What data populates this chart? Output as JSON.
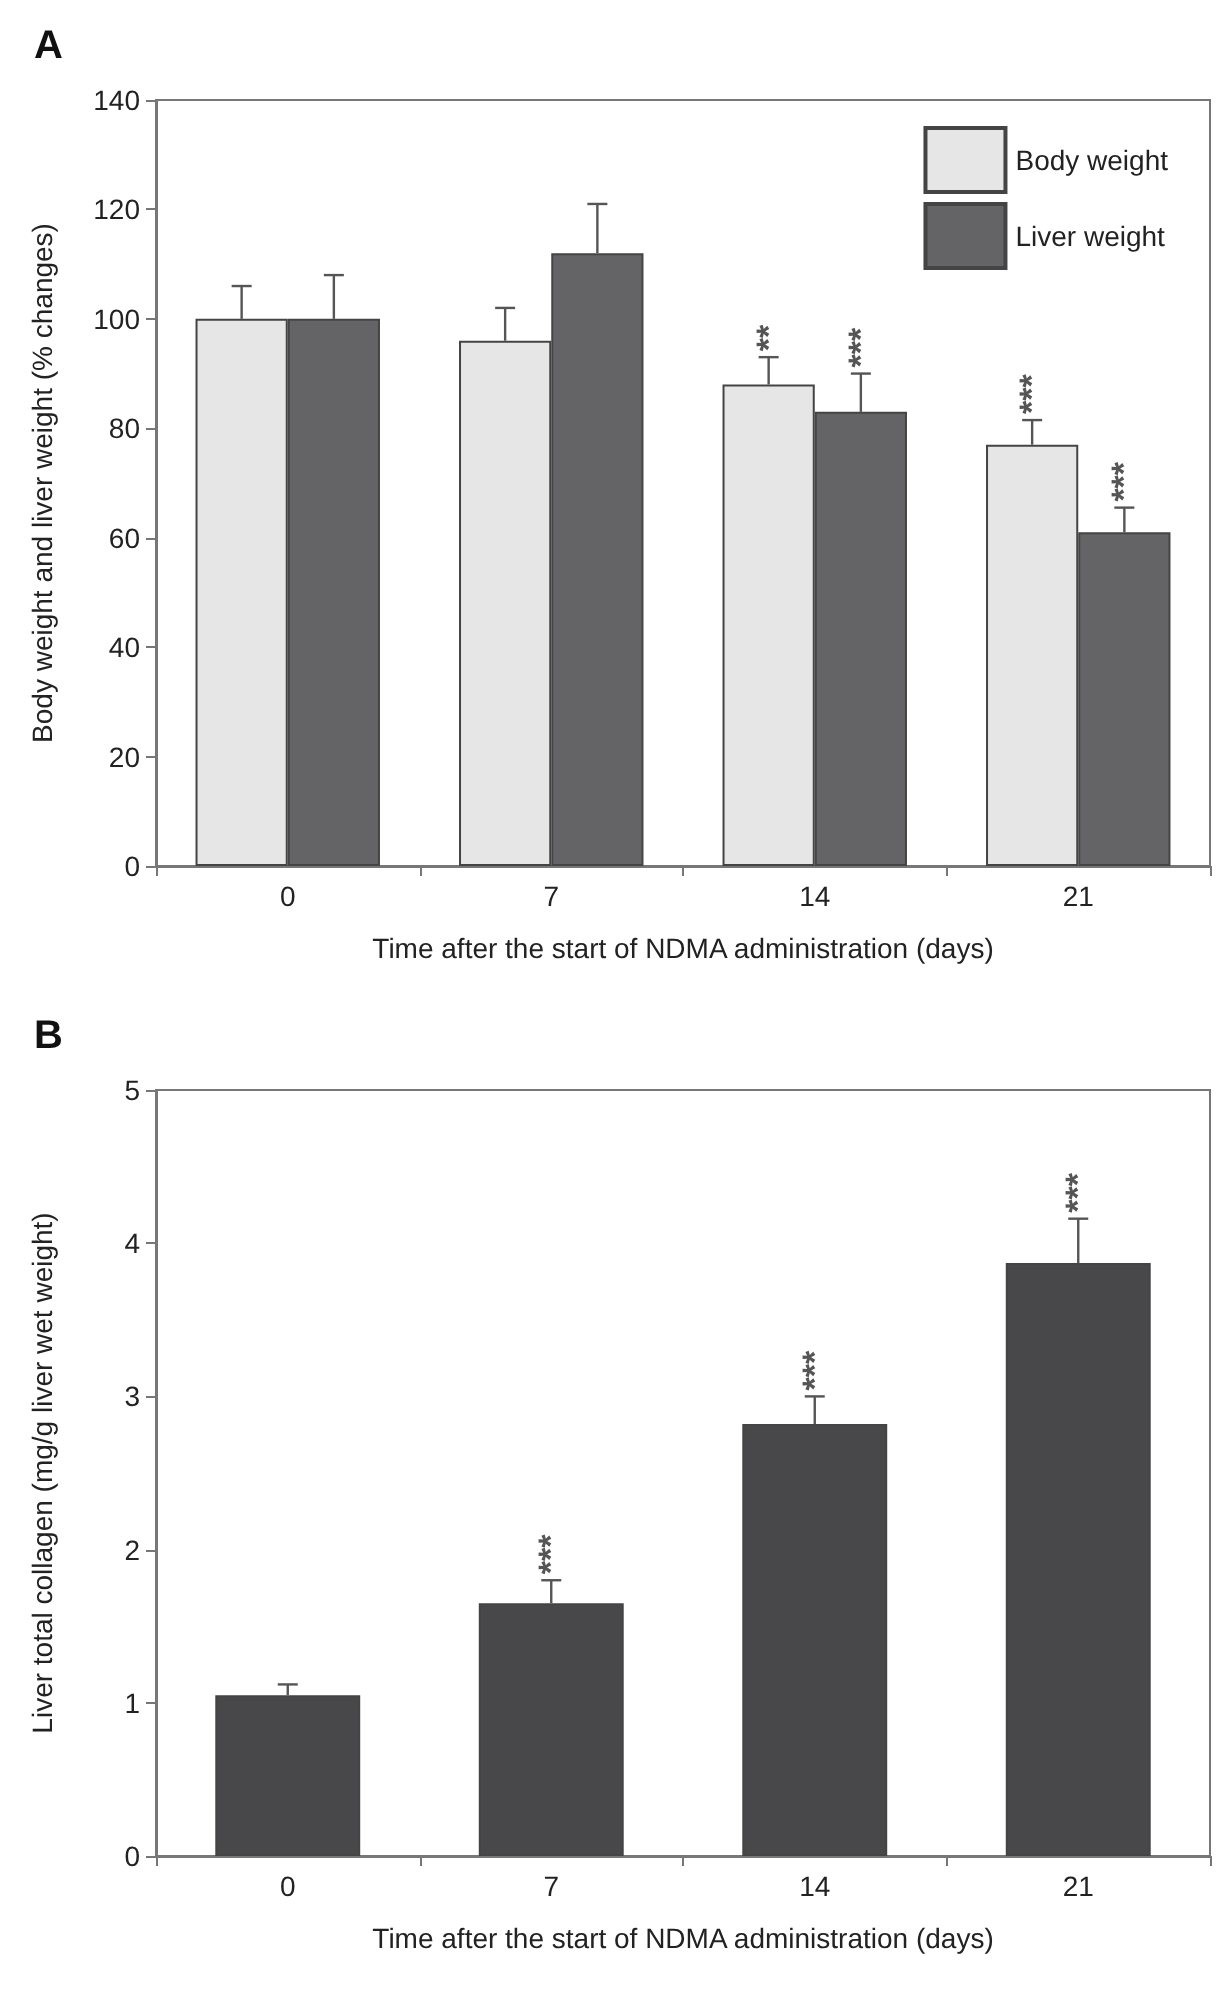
{
  "chart_data": [
    {
      "type": "bar",
      "title": "A",
      "xlabel": "Time after the start of NDMA administration (days)",
      "ylabel": "Body weight and liver weight (% changes)",
      "categories": [
        "0",
        "7",
        "14",
        "21"
      ],
      "series": [
        {
          "name": "Body weight",
          "color": "#e6e6e6",
          "values": [
            100,
            96,
            88,
            77
          ],
          "errors": [
            6,
            6,
            5,
            4.5
          ]
        },
        {
          "name": "Liver weight",
          "color": "#646466",
          "values": [
            100,
            112,
            83,
            61
          ],
          "errors": [
            8,
            9,
            7,
            4.5
          ]
        }
      ],
      "ylim": [
        0,
        140
      ],
      "yticks": [
        0,
        20,
        40,
        60,
        80,
        100,
        120,
        140
      ],
      "grid": false,
      "legend": "top right",
      "annotations": [
        {
          "text": "**",
          "x": "14",
          "y": 88
        },
        {
          "text": "***",
          "x": "14",
          "y": 83
        },
        {
          "text": "***",
          "x": "21",
          "y": 77
        },
        {
          "text": "***",
          "x": "21",
          "y": 65.5
        }
      ]
    },
    {
      "type": "bar",
      "title": "B",
      "xlabel": "Time after the start of NDMA administration (days)",
      "ylabel": "Liver total collagen (mg/g liver wet weight)",
      "categories": [
        "0",
        "7",
        "14",
        "21"
      ],
      "series": [
        {
          "color": "#48484a",
          "values": [
            1.05,
            1.65,
            2.82,
            3.87
          ],
          "errors": [
            0.07,
            0.15,
            0.18,
            0.29
          ]
        }
      ],
      "ylim": [
        0,
        5
      ],
      "yticks": [
        0,
        1,
        2,
        3,
        4,
        5
      ],
      "grid": false,
      "legend": false,
      "annotations": [
        {
          "text": "***",
          "x": "7",
          "y": 1.65
        },
        {
          "text": "***",
          "x": "14",
          "y": 2.82
        },
        {
          "text": "***",
          "x": "21",
          "y": 3.87
        }
      ]
    }
  ]
}
